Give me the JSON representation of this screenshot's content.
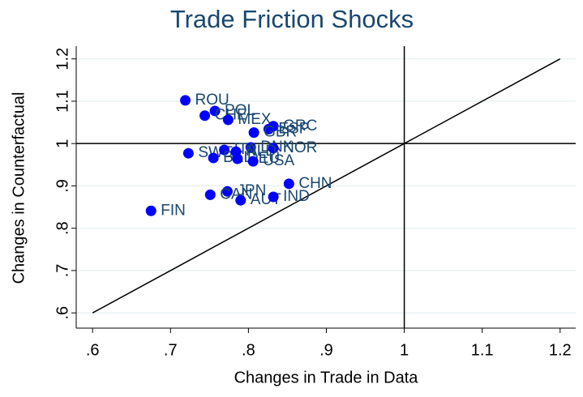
{
  "chart_data": {
    "type": "scatter",
    "title": "Trade Friction Shocks",
    "x_label": "Changes in Trade in Data",
    "y_label": "Changes in Counterfactual",
    "xlim": [
      0.579,
      1.22
    ],
    "ylim": [
      0.564,
      1.23
    ],
    "xticks": [
      {
        "value": 0.6,
        "label": ".6"
      },
      {
        "value": 0.7,
        "label": ".7"
      },
      {
        "value": 0.8,
        "label": ".8"
      },
      {
        "value": 0.9,
        "label": ".9"
      },
      1,
      1.1,
      1.2
    ],
    "yticks": [
      {
        "value": 0.6,
        "label": ".6"
      },
      {
        "value": 0.7,
        "label": ".7"
      },
      {
        "value": 0.8,
        "label": ".8"
      },
      {
        "value": 0.9,
        "label": ".9"
      },
      1,
      1.1,
      1.2
    ],
    "grid": true,
    "xline": 1,
    "yline": 1,
    "diagonal": [
      0.6,
      1.2
    ],
    "series": [
      {
        "color": "#0000ff",
        "label_color": "#1a476f",
        "labels": [
          "ROU",
          "POL",
          "CHE",
          "MEX",
          "GRC",
          "ESP",
          "GBR",
          "DNK",
          "NOR",
          "SWE",
          "ITA",
          "BEL",
          "NLD",
          "DEU",
          "USA",
          "CHN",
          "JPN",
          "CAN",
          "AUT",
          "IND",
          "FIN"
        ],
        "x": [
          0.719,
          0.757,
          0.744,
          0.774,
          0.832,
          0.826,
          0.807,
          0.803,
          0.832,
          0.723,
          0.769,
          0.755,
          0.784,
          0.786,
          0.806,
          0.852,
          0.773,
          0.751,
          0.79,
          0.832,
          0.675
        ],
        "y": [
          1.102,
          1.077,
          1.066,
          1.056,
          1.041,
          1.034,
          1.026,
          0.991,
          0.989,
          0.977,
          0.985,
          0.966,
          0.981,
          0.964,
          0.958,
          0.905,
          0.887,
          0.879,
          0.866,
          0.874,
          0.841
        ]
      }
    ]
  }
}
